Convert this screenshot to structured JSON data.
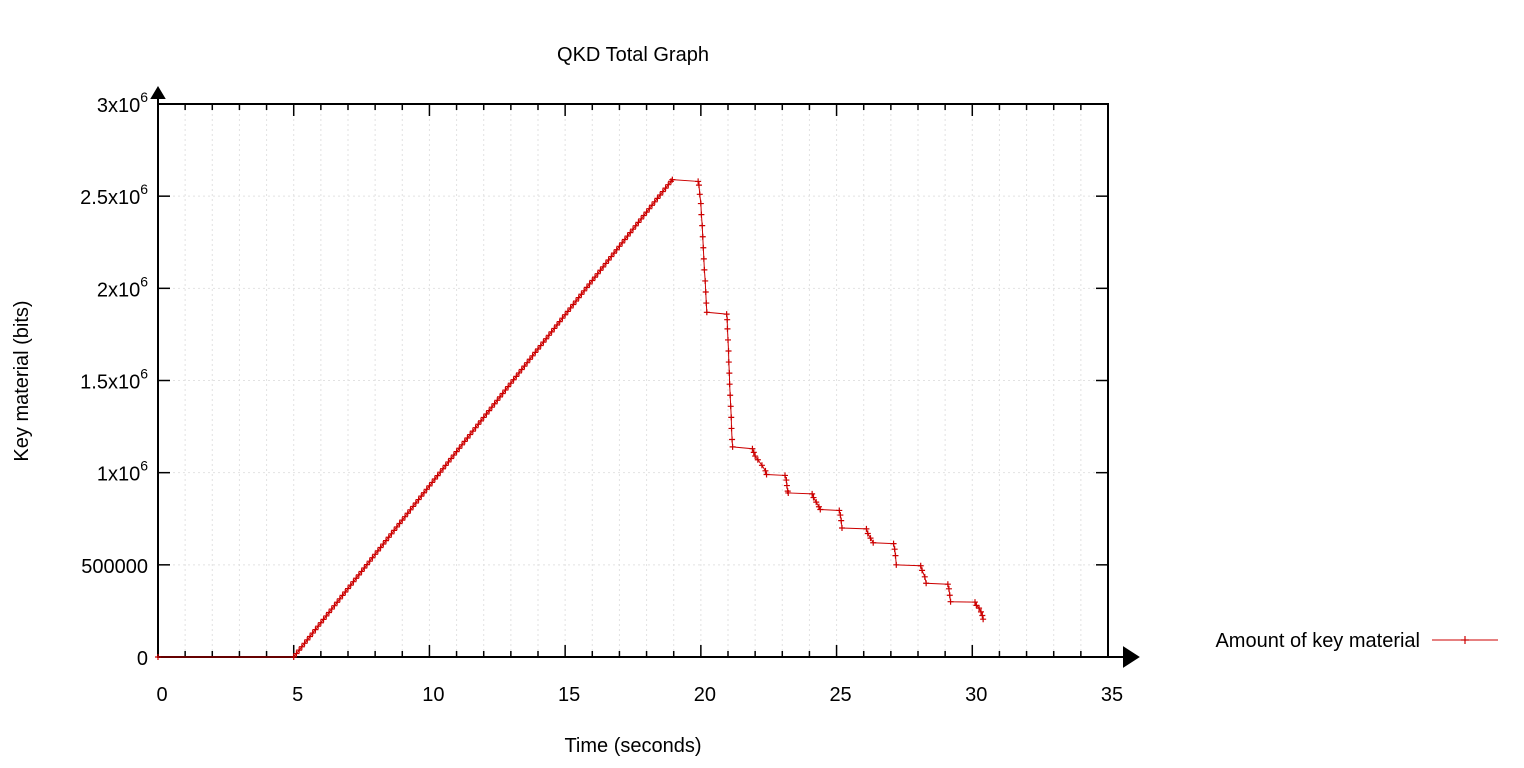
{
  "chart_data": {
    "type": "line",
    "title": "QKD Total Graph",
    "xlabel": "Time (seconds)",
    "ylabel": "Key material (bits)",
    "xlim": [
      0,
      35
    ],
    "ylim": [
      0,
      3000000
    ],
    "x_ticks": [
      0,
      5,
      10,
      15,
      20,
      25,
      30,
      35
    ],
    "x_tick_labels": [
      "0",
      "5",
      "10",
      "15",
      "20",
      "25",
      "30",
      "35"
    ],
    "y_ticks": [
      0,
      500000,
      1000000,
      1500000,
      2000000,
      2500000,
      3000000
    ],
    "y_tick_labels": [
      {
        "base": "0",
        "exp": ""
      },
      {
        "base": "500000",
        "exp": ""
      },
      {
        "base": "1x10",
        "exp": "6"
      },
      {
        "base": "1.5x10",
        "exp": "6"
      },
      {
        "base": "2x10",
        "exp": "6"
      },
      {
        "base": "2.5x10",
        "exp": "6"
      },
      {
        "base": "3x10",
        "exp": "6"
      }
    ],
    "x_minor_interval": 1,
    "grid": true,
    "legend_position": "right",
    "series": [
      {
        "name": "Amount of key material",
        "color": "#cc0000",
        "ramp": {
          "start": [
            5.0,
            0
          ],
          "end": [
            18.95,
            2590000
          ],
          "step": 0.1
        },
        "points": [
          [
            0,
            0
          ],
          [
            5.0,
            0
          ],
          [
            18.95,
            2590000
          ],
          [
            19.9,
            2580000
          ],
          [
            19.93,
            2560000
          ],
          [
            19.96,
            2510000
          ],
          [
            20.0,
            2460000
          ],
          [
            20.02,
            2400000
          ],
          [
            20.05,
            2340000
          ],
          [
            20.07,
            2280000
          ],
          [
            20.09,
            2220000
          ],
          [
            20.11,
            2160000
          ],
          [
            20.13,
            2100000
          ],
          [
            20.16,
            2040000
          ],
          [
            20.18,
            1980000
          ],
          [
            20.2,
            1920000
          ],
          [
            20.22,
            1870000
          ],
          [
            20.95,
            1860000
          ],
          [
            20.97,
            1830000
          ],
          [
            20.98,
            1780000
          ],
          [
            21.0,
            1720000
          ],
          [
            21.02,
            1660000
          ],
          [
            21.03,
            1600000
          ],
          [
            21.05,
            1540000
          ],
          [
            21.06,
            1480000
          ],
          [
            21.08,
            1420000
          ],
          [
            21.1,
            1360000
          ],
          [
            21.12,
            1300000
          ],
          [
            21.13,
            1240000
          ],
          [
            21.15,
            1180000
          ],
          [
            21.17,
            1140000
          ],
          [
            21.9,
            1130000
          ],
          [
            21.95,
            1110000
          ],
          [
            22.0,
            1090000
          ],
          [
            22.1,
            1070000
          ],
          [
            22.25,
            1040000
          ],
          [
            22.38,
            1010000
          ],
          [
            22.42,
            990000
          ],
          [
            23.1,
            985000
          ],
          [
            23.15,
            960000
          ],
          [
            23.17,
            930000
          ],
          [
            23.2,
            900000
          ],
          [
            23.22,
            890000
          ],
          [
            24.1,
            885000
          ],
          [
            24.15,
            865000
          ],
          [
            24.25,
            840000
          ],
          [
            24.35,
            815000
          ],
          [
            24.4,
            800000
          ],
          [
            25.1,
            795000
          ],
          [
            25.14,
            770000
          ],
          [
            25.17,
            740000
          ],
          [
            25.2,
            700000
          ],
          [
            26.1,
            695000
          ],
          [
            26.15,
            670000
          ],
          [
            26.25,
            645000
          ],
          [
            26.35,
            620000
          ],
          [
            27.1,
            615000
          ],
          [
            27.14,
            585000
          ],
          [
            27.17,
            550000
          ],
          [
            27.2,
            500000
          ],
          [
            28.1,
            495000
          ],
          [
            28.15,
            470000
          ],
          [
            28.25,
            435000
          ],
          [
            28.3,
            400000
          ],
          [
            29.1,
            395000
          ],
          [
            29.14,
            370000
          ],
          [
            29.17,
            335000
          ],
          [
            29.2,
            300000
          ],
          [
            30.1,
            298000
          ],
          [
            30.15,
            280000
          ],
          [
            30.25,
            265000
          ],
          [
            30.32,
            245000
          ],
          [
            30.37,
            225000
          ],
          [
            30.4,
            205000
          ]
        ]
      }
    ]
  }
}
